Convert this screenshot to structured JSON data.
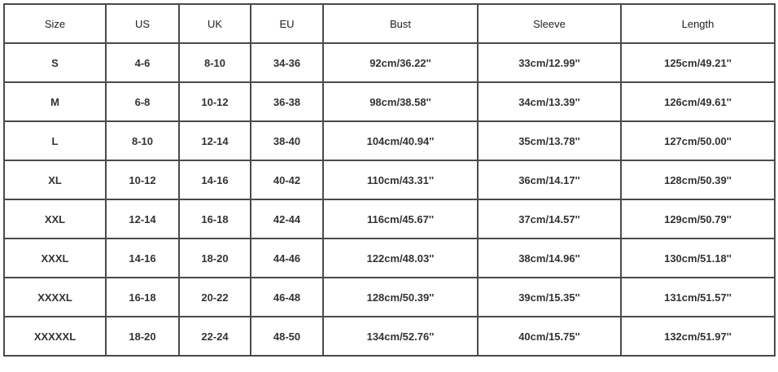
{
  "table": {
    "headers": [
      "Size",
      "US",
      "UK",
      "EU",
      "Bust",
      "Sleeve",
      "Length"
    ],
    "rows": [
      [
        "S",
        "4-6",
        "8-10",
        "34-36",
        "92cm/36.22''",
        "33cm/12.99''",
        "125cm/49.21''"
      ],
      [
        "M",
        "6-8",
        "10-12",
        "36-38",
        "98cm/38.58''",
        "34cm/13.39''",
        "126cm/49.61''"
      ],
      [
        "L",
        "8-10",
        "12-14",
        "38-40",
        "104cm/40.94''",
        "35cm/13.78''",
        "127cm/50.00''"
      ],
      [
        "XL",
        "10-12",
        "14-16",
        "40-42",
        "110cm/43.31''",
        "36cm/14.17''",
        "128cm/50.39''"
      ],
      [
        "XXL",
        "12-14",
        "16-18",
        "42-44",
        "116cm/45.67''",
        "37cm/14.57''",
        "129cm/50.79''"
      ],
      [
        "XXXL",
        "14-16",
        "18-20",
        "44-46",
        "122cm/48.03''",
        "38cm/14.96''",
        "130cm/51.18''"
      ],
      [
        "XXXXL",
        "16-18",
        "20-22",
        "46-48",
        "128cm/50.39''",
        "39cm/15.35''",
        "131cm/51.57''"
      ],
      [
        "XXXXXL",
        "18-20",
        "22-24",
        "48-50",
        "134cm/52.76''",
        "40cm/15.75''",
        "132cm/51.97''"
      ]
    ]
  }
}
